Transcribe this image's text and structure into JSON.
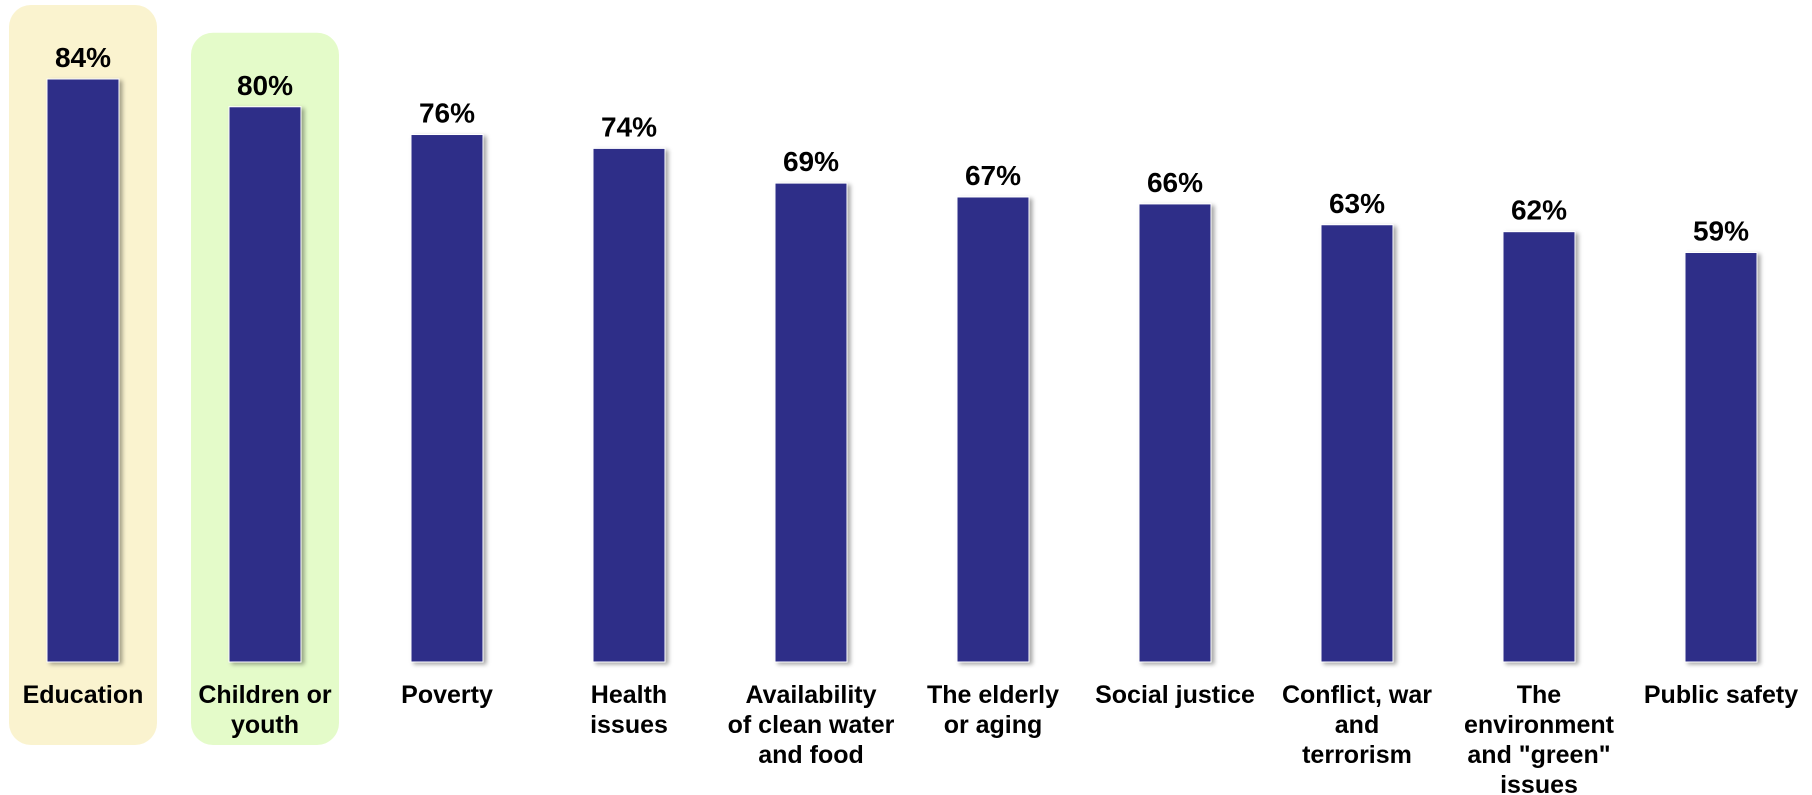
{
  "chart_data": {
    "type": "bar",
    "categories": [
      [
        "Education"
      ],
      [
        "Children or",
        "youth"
      ],
      [
        "Poverty"
      ],
      [
        "Health",
        "issues"
      ],
      [
        "Availability",
        "of clean water",
        "and food"
      ],
      [
        "The elderly",
        "or aging"
      ],
      [
        "Social justice"
      ],
      [
        "Conflict, war",
        "and",
        "terrorism"
      ],
      [
        "The",
        "environment",
        "and \"green\"",
        "issues"
      ],
      [
        "Public safety"
      ]
    ],
    "values": [
      84,
      80,
      76,
      74,
      69,
      67,
      66,
      63,
      62,
      59
    ],
    "value_labels": [
      "84%",
      "80%",
      "76%",
      "74%",
      "69%",
      "67%",
      "66%",
      "63%",
      "62%",
      "59%"
    ],
    "ylim": [
      0,
      84
    ],
    "bar_color": "#2e2e88",
    "highlights": [
      {
        "index": 0,
        "color": "#faf3cf"
      },
      {
        "index": 1,
        "color": "#e4fbc9"
      }
    ],
    "grid": false,
    "legend": "none"
  }
}
